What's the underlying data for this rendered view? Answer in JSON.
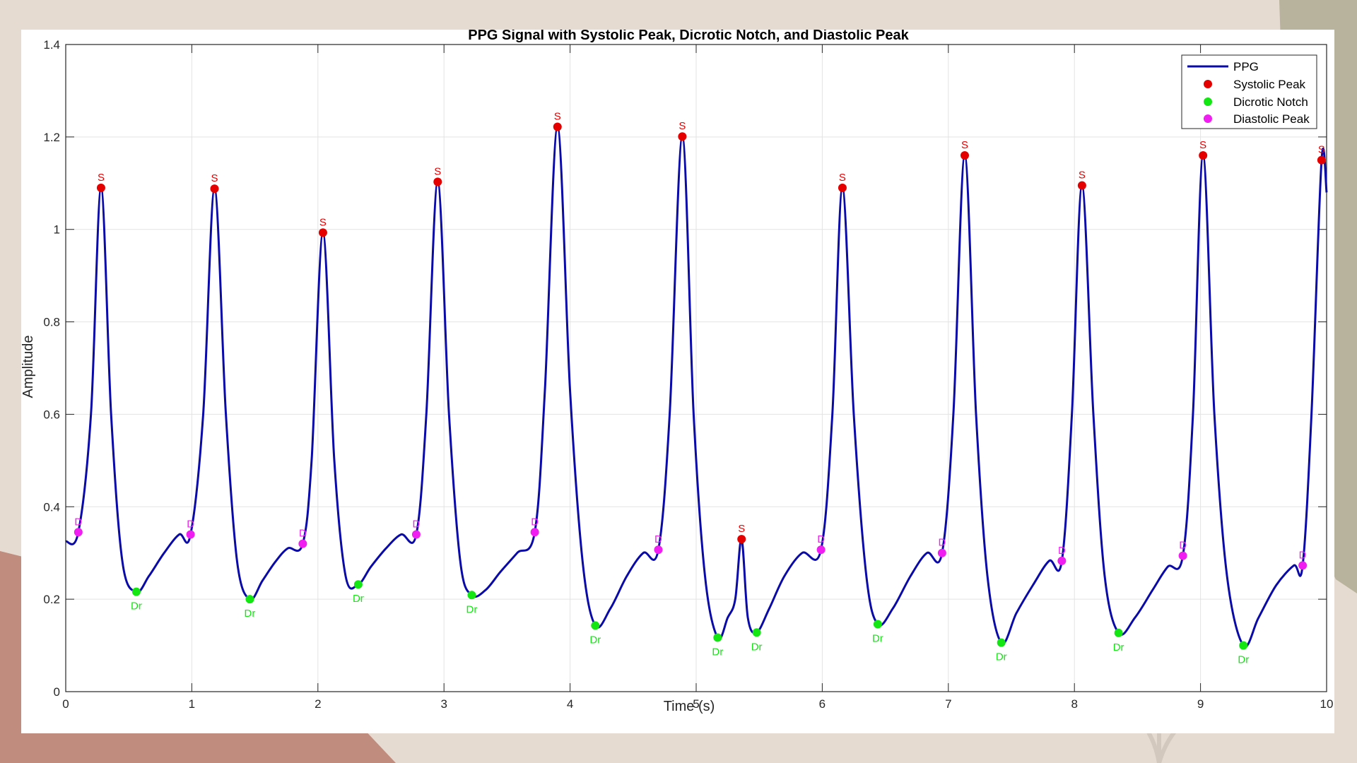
{
  "colors": {
    "background": "#e6dbd1",
    "olive": "#b8b39c",
    "rust": "#c08c7e",
    "ppg_line": "#0a0aa8",
    "systolic": "#e50000",
    "notch": "#14e614",
    "diastolic": "#f01ef0"
  },
  "chart_data": {
    "type": "line",
    "title": "PPG Signal with Systolic Peak, Dicrotic Notch, and Diastolic Peak",
    "xlabel": "Time (s)",
    "ylabel": "Amplitude",
    "xlim": [
      0,
      10
    ],
    "ylim": [
      0,
      1.4
    ],
    "xticks": [
      0,
      1,
      2,
      3,
      4,
      5,
      6,
      7,
      8,
      9,
      10
    ],
    "xtick_labels": [
      "0",
      "1",
      "2",
      "3",
      "4",
      "5",
      "6",
      "7",
      "8",
      "9",
      "10"
    ],
    "yticks": [
      0,
      0.2,
      0.4,
      0.6,
      0.8,
      1.0,
      1.2,
      1.4
    ],
    "ytick_labels": [
      "0",
      "0.2",
      "0.4",
      "0.6",
      "0.8",
      "1",
      "1.2",
      "1.4"
    ],
    "grid": true,
    "legend_position": "top-right",
    "legend": [
      {
        "label": "PPG",
        "kind": "line"
      },
      {
        "label": "Systolic Peak",
        "kind": "marker"
      },
      {
        "label": "Dicrotic Notch",
        "kind": "marker"
      },
      {
        "label": "Diastolic Peak",
        "kind": "marker"
      }
    ],
    "marker_labels": {
      "systolic": "S",
      "notch": "Dr",
      "diastolic": "D"
    },
    "series": [
      {
        "name": "PPG",
        "x": [
          0,
          0.1,
          0.2,
          0.28,
          0.36,
          0.45,
          0.56,
          0.66,
          0.78,
          0.9,
          0.99,
          1.09,
          1.18,
          1.27,
          1.36,
          1.46,
          1.56,
          1.66,
          1.76,
          1.88,
          1.95,
          2.04,
          2.13,
          2.22,
          2.32,
          2.42,
          2.54,
          2.66,
          2.78,
          2.86,
          2.95,
          3.04,
          3.13,
          3.22,
          3.33,
          3.45,
          3.58,
          3.72,
          3.8,
          3.9,
          4.0,
          4.1,
          4.2,
          4.32,
          4.45,
          4.58,
          4.7,
          4.79,
          4.89,
          4.98,
          5.07,
          5.17,
          5.25,
          5.31,
          5.36,
          5.41,
          5.48,
          5.58,
          5.7,
          5.84,
          5.99,
          6.08,
          6.16,
          6.25,
          6.35,
          6.44,
          6.56,
          6.7,
          6.83,
          6.95,
          7.04,
          7.13,
          7.22,
          7.31,
          7.42,
          7.54,
          7.67,
          7.8,
          7.9,
          7.98,
          8.06,
          8.15,
          8.24,
          8.35,
          8.48,
          8.62,
          8.74,
          8.86,
          8.94,
          9.02,
          9.11,
          9.21,
          9.34,
          9.46,
          9.6,
          9.74,
          9.81,
          9.88,
          9.96,
          10.0
        ],
        "y": [
          0.325,
          0.345,
          0.6,
          1.09,
          0.6,
          0.28,
          0.216,
          0.25,
          0.3,
          0.34,
          0.34,
          0.6,
          1.088,
          0.6,
          0.28,
          0.2,
          0.24,
          0.28,
          0.31,
          0.32,
          0.5,
          0.993,
          0.5,
          0.25,
          0.232,
          0.27,
          0.31,
          0.34,
          0.34,
          0.6,
          1.103,
          0.6,
          0.28,
          0.209,
          0.22,
          0.26,
          0.3,
          0.345,
          0.65,
          1.222,
          0.65,
          0.28,
          0.143,
          0.18,
          0.25,
          0.3,
          0.307,
          0.6,
          1.201,
          0.6,
          0.25,
          0.117,
          0.16,
          0.2,
          0.33,
          0.16,
          0.128,
          0.18,
          0.25,
          0.3,
          0.307,
          0.6,
          1.09,
          0.6,
          0.25,
          0.146,
          0.18,
          0.25,
          0.3,
          0.3,
          0.6,
          1.16,
          0.6,
          0.25,
          0.106,
          0.17,
          0.23,
          0.283,
          0.283,
          0.6,
          1.095,
          0.6,
          0.25,
          0.127,
          0.16,
          0.22,
          0.27,
          0.294,
          0.6,
          1.16,
          0.6,
          0.25,
          0.1,
          0.16,
          0.23,
          0.273,
          0.273,
          0.6,
          1.15,
          1.08
        ]
      },
      {
        "name": "Systolic Peak",
        "x": [
          0.28,
          1.18,
          2.04,
          2.95,
          3.9,
          4.89,
          5.36,
          6.16,
          7.13,
          8.06,
          9.02,
          9.96
        ],
        "y": [
          1.09,
          1.088,
          0.993,
          1.103,
          1.222,
          1.201,
          0.33,
          1.09,
          1.16,
          1.095,
          1.16,
          1.15
        ]
      },
      {
        "name": "Dicrotic Notch",
        "x": [
          0.56,
          1.46,
          2.32,
          3.22,
          4.2,
          5.17,
          5.48,
          6.44,
          7.42,
          8.35,
          9.34
        ],
        "y": [
          0.216,
          0.2,
          0.232,
          0.209,
          0.143,
          0.117,
          0.128,
          0.146,
          0.106,
          0.127,
          0.1
        ]
      },
      {
        "name": "Diastolic Peak",
        "x": [
          0.1,
          0.99,
          1.88,
          2.78,
          3.72,
          4.7,
          5.99,
          6.95,
          7.9,
          8.86,
          9.81
        ],
        "y": [
          0.345,
          0.34,
          0.32,
          0.34,
          0.345,
          0.307,
          0.307,
          0.3,
          0.283,
          0.294,
          0.273
        ]
      }
    ]
  }
}
